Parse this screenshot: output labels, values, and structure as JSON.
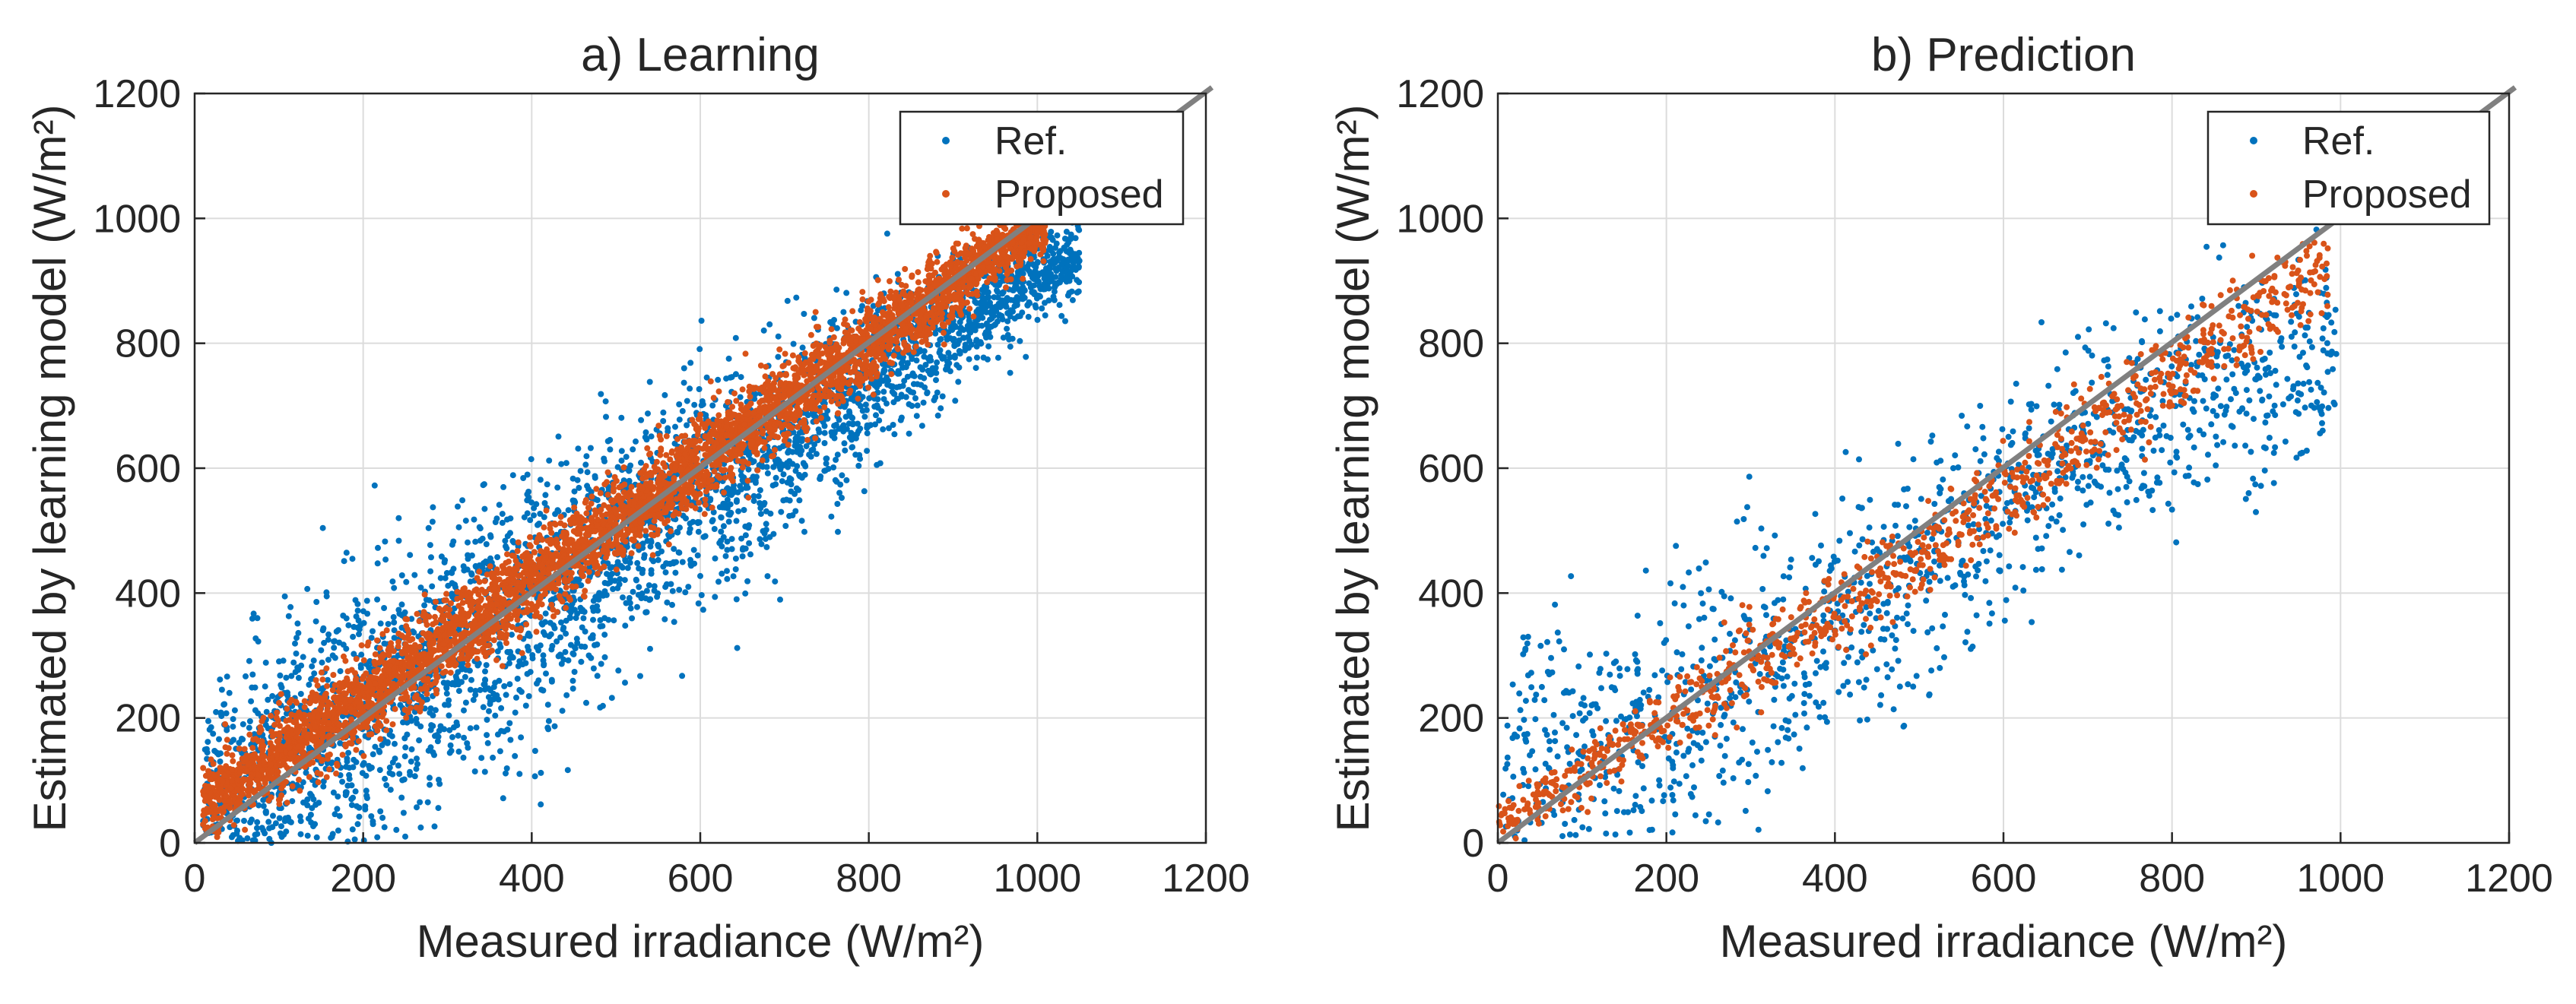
{
  "colors": {
    "ref": "#0072BD",
    "proposed": "#D95319",
    "identity_line": "#808080",
    "grid": "#DCDCDC",
    "axes": "#262626"
  },
  "chart_data": [
    {
      "type": "scatter",
      "title": "a) Learning",
      "xlabel": "Measured irradiance (W/m²)",
      "ylabel": "Estimated by learning model (W/m²)",
      "xlim": [
        0,
        1200
      ],
      "ylim": [
        0,
        1200
      ],
      "xticks": [
        0,
        200,
        400,
        600,
        800,
        1000,
        1200
      ],
      "yticks": [
        0,
        200,
        400,
        600,
        800,
        1000,
        1200
      ],
      "grid": true,
      "legend_position": "top-right",
      "legend": [
        "Ref.",
        "Proposed"
      ],
      "reference_line": {
        "x": [
          0,
          1200
        ],
        "y": [
          0,
          1200
        ]
      },
      "series": [
        {
          "name": "Ref.",
          "x": [
            20,
            40,
            60,
            80,
            100,
            120,
            140,
            160,
            180,
            200,
            220,
            240,
            260,
            280,
            300,
            320,
            340,
            360,
            380,
            400,
            420,
            440,
            460,
            480,
            500,
            520,
            540,
            560,
            580,
            600,
            620,
            640,
            660,
            680,
            700,
            720,
            740,
            760,
            780,
            800,
            820,
            840,
            860,
            880,
            900,
            920,
            940,
            960,
            980,
            1000,
            1020,
            1040
          ],
          "y_mean": [
            60,
            75,
            90,
            105,
            120,
            140,
            155,
            175,
            190,
            205,
            225,
            240,
            255,
            275,
            290,
            310,
            330,
            345,
            360,
            380,
            400,
            415,
            435,
            450,
            470,
            490,
            505,
            520,
            540,
            560,
            580,
            595,
            615,
            630,
            650,
            670,
            690,
            705,
            720,
            740,
            760,
            780,
            795,
            810,
            830,
            845,
            860,
            880,
            895,
            910,
            920,
            930
          ],
          "y_spread": [
            150,
            160,
            170,
            175,
            180,
            185,
            190,
            195,
            200,
            200,
            200,
            200,
            200,
            200,
            195,
            195,
            195,
            190,
            190,
            190,
            185,
            185,
            180,
            180,
            175,
            175,
            170,
            170,
            165,
            160,
            160,
            155,
            150,
            145,
            140,
            135,
            130,
            125,
            120,
            115,
            110,
            105,
            100,
            95,
            90,
            85,
            80,
            75,
            70,
            65,
            60,
            55
          ]
        },
        {
          "name": "Proposed",
          "x": [
            20,
            40,
            60,
            80,
            100,
            120,
            140,
            160,
            180,
            200,
            220,
            240,
            260,
            280,
            300,
            320,
            340,
            360,
            380,
            400,
            420,
            440,
            460,
            480,
            500,
            520,
            540,
            560,
            580,
            600,
            620,
            640,
            660,
            680,
            700,
            720,
            740,
            760,
            780,
            800,
            820,
            840,
            860,
            880,
            900,
            920,
            940,
            960,
            980,
            1000
          ],
          "y_mean": [
            70,
            90,
            105,
            120,
            140,
            160,
            175,
            195,
            215,
            230,
            250,
            270,
            285,
            305,
            325,
            345,
            360,
            380,
            400,
            420,
            440,
            455,
            475,
            495,
            515,
            535,
            550,
            570,
            590,
            610,
            630,
            650,
            665,
            685,
            705,
            725,
            745,
            760,
            780,
            800,
            820,
            840,
            855,
            875,
            895,
            915,
            935,
            950,
            965,
            975
          ],
          "y_spread": [
            55,
            55,
            55,
            60,
            60,
            60,
            60,
            60,
            60,
            60,
            60,
            60,
            60,
            60,
            60,
            60,
            60,
            60,
            60,
            60,
            60,
            60,
            60,
            60,
            60,
            60,
            60,
            60,
            60,
            60,
            60,
            60,
            60,
            60,
            60,
            60,
            60,
            55,
            55,
            55,
            55,
            50,
            50,
            50,
            50,
            45,
            45,
            40,
            40,
            35
          ]
        }
      ]
    },
    {
      "type": "scatter",
      "title": "b) Prediction",
      "xlabel": "Measured irradiance (W/m²)",
      "ylabel": "Estimated by learning model (W/m²)",
      "xlim": [
        0,
        1200
      ],
      "ylim": [
        0,
        1200
      ],
      "xticks": [
        0,
        200,
        400,
        600,
        800,
        1000,
        1200
      ],
      "yticks": [
        0,
        200,
        400,
        600,
        800,
        1000,
        1200
      ],
      "grid": true,
      "legend_position": "top-right",
      "legend": [
        "Ref.",
        "Proposed"
      ],
      "reference_line": {
        "x": [
          0,
          1200
        ],
        "y": [
          0,
          1200
        ]
      },
      "series": [
        {
          "name": "Ref.",
          "x": [
            20,
            50,
            80,
            110,
            140,
            170,
            200,
            230,
            260,
            290,
            320,
            350,
            380,
            410,
            440,
            470,
            500,
            530,
            560,
            590,
            620,
            650,
            680,
            710,
            740,
            770,
            800,
            830,
            860,
            890,
            920,
            950,
            980
          ],
          "y_mean": [
            110,
            120,
            130,
            140,
            160,
            180,
            200,
            220,
            245,
            265,
            290,
            310,
            335,
            360,
            385,
            410,
            440,
            470,
            500,
            530,
            560,
            590,
            620,
            650,
            660,
            680,
            700,
            720,
            730,
            740,
            750,
            760,
            770
          ],
          "y_spread": [
            200,
            210,
            210,
            210,
            210,
            210,
            210,
            205,
            200,
            200,
            195,
            190,
            185,
            180,
            180,
            175,
            170,
            170,
            165,
            160,
            160,
            155,
            150,
            150,
            150,
            150,
            150,
            150,
            150,
            150,
            150,
            150,
            150
          ]
        },
        {
          "name": "Proposed",
          "x": [
            10,
            40,
            70,
            100,
            130,
            160,
            190,
            220,
            250,
            280,
            310,
            340,
            370,
            400,
            430,
            460,
            490,
            520,
            550,
            580,
            610,
            640,
            670,
            700,
            730,
            760,
            790,
            820,
            850,
            880,
            910,
            940,
            970
          ],
          "y_mean": [
            40,
            65,
            90,
            115,
            140,
            165,
            190,
            215,
            240,
            265,
            290,
            320,
            345,
            375,
            400,
            425,
            455,
            480,
            510,
            540,
            565,
            595,
            625,
            655,
            685,
            715,
            740,
            770,
            800,
            830,
            860,
            890,
            910
          ],
          "y_spread": [
            35,
            40,
            45,
            45,
            45,
            50,
            50,
            50,
            50,
            55,
            55,
            55,
            55,
            60,
            60,
            60,
            60,
            60,
            60,
            60,
            60,
            60,
            60,
            60,
            60,
            60,
            60,
            60,
            60,
            60,
            60,
            60,
            60
          ]
        }
      ]
    }
  ]
}
